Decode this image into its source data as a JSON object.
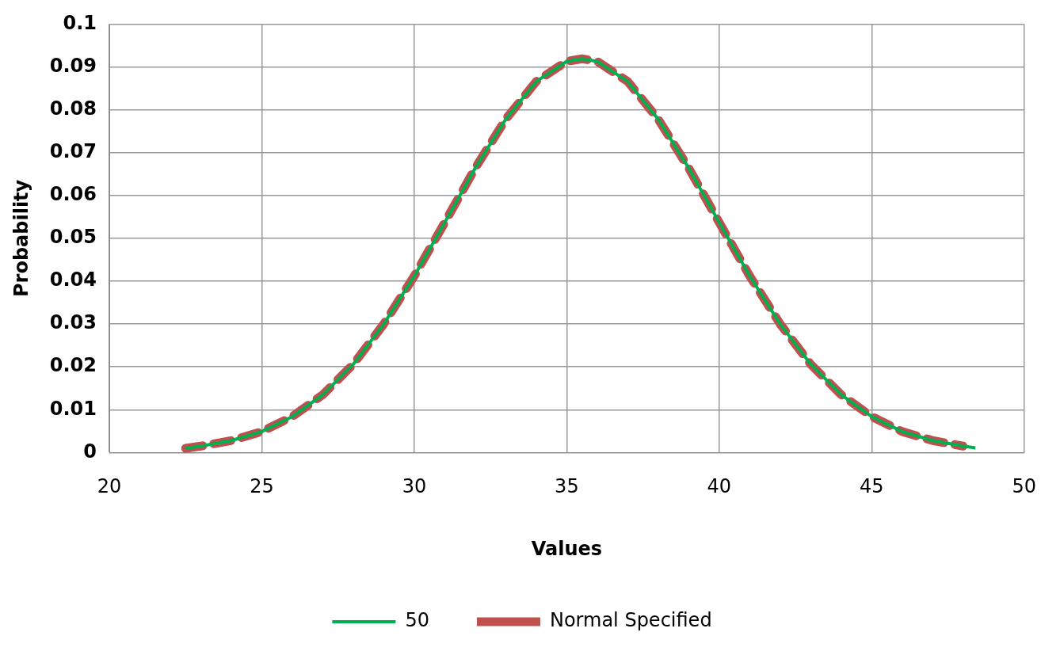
{
  "chart_data": {
    "type": "line",
    "xlabel": "Values",
    "ylabel": "Probability",
    "xlim": [
      20,
      50
    ],
    "xticks": [
      20,
      25,
      30,
      35,
      40,
      45,
      50
    ],
    "ylim": [
      0,
      0.1
    ],
    "yticks": [
      0,
      0.01,
      0.02,
      0.03,
      0.04,
      0.05,
      0.06,
      0.07,
      0.08,
      0.09,
      0.1
    ],
    "grid": true,
    "legend": "bottom",
    "marker": "none",
    "series": [
      {
        "name": "50",
        "color": "#00b050",
        "line_style": "solid",
        "x": [
          22.5,
          23,
          24,
          25,
          26,
          27,
          28,
          29,
          30,
          31,
          32,
          33,
          34,
          35,
          35.5,
          36,
          37,
          38,
          39,
          40,
          41,
          42,
          43,
          44,
          45,
          46,
          47,
          48,
          48.4
        ],
        "values": [
          0.001,
          0.0015,
          0.0028,
          0.0049,
          0.0084,
          0.0135,
          0.0206,
          0.03,
          0.0412,
          0.0537,
          0.0664,
          0.0778,
          0.0866,
          0.0913,
          0.0919,
          0.0913,
          0.0866,
          0.0778,
          0.0664,
          0.0537,
          0.0412,
          0.03,
          0.0206,
          0.0135,
          0.0084,
          0.0049,
          0.0028,
          0.0015,
          0.0011
        ]
      },
      {
        "name": "Normal Specified",
        "color": "#c0504d",
        "line_style": "dashed",
        "x": [
          22.5,
          23,
          24,
          25,
          26,
          27,
          28,
          29,
          30,
          31,
          32,
          33,
          34,
          35,
          35.5,
          36,
          37,
          38,
          39,
          40,
          41,
          42,
          43,
          44,
          45,
          46,
          47,
          48
        ],
        "values": [
          0.001,
          0.0015,
          0.0028,
          0.0049,
          0.0084,
          0.0135,
          0.0206,
          0.03,
          0.0412,
          0.0537,
          0.0664,
          0.0778,
          0.0866,
          0.0913,
          0.0919,
          0.0913,
          0.0866,
          0.0778,
          0.0664,
          0.0537,
          0.0412,
          0.03,
          0.0206,
          0.0135,
          0.0084,
          0.0049,
          0.0028,
          0.0015
        ]
      }
    ]
  }
}
